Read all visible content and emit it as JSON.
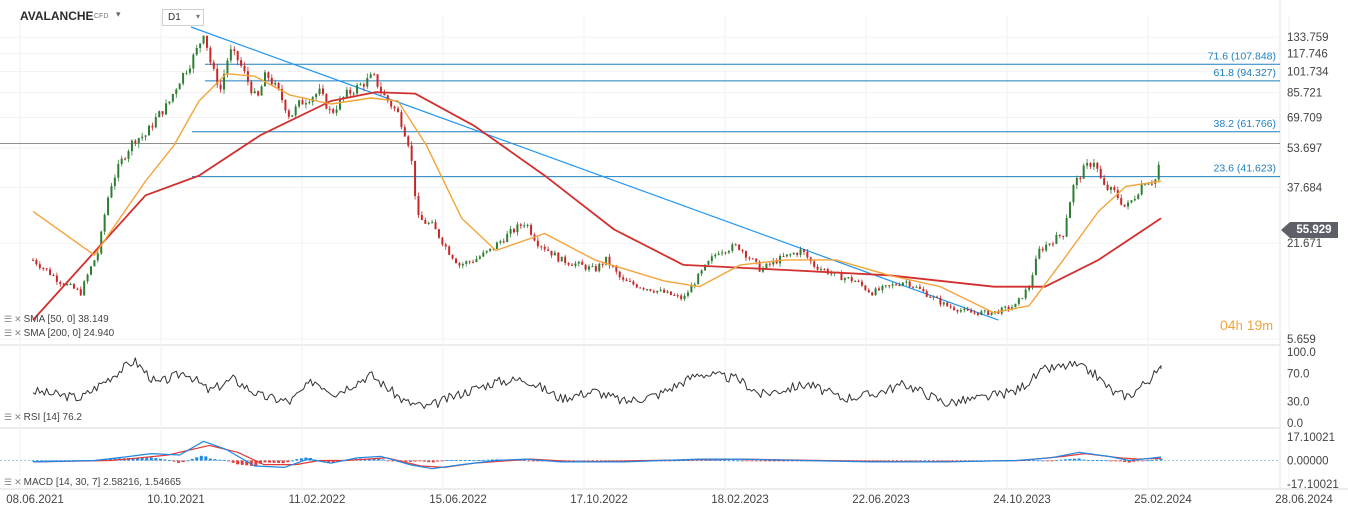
{
  "header": {
    "instrument": "AVALANCHE",
    "instrument_type": "CFD",
    "timeframe": "D1"
  },
  "countdown": {
    "hours": "04",
    "hours_unit": "h",
    "minutes": "19",
    "minutes_unit": "m"
  },
  "indicators": {
    "sma50": "SMA [50, 0] 38.149",
    "sma200": "SMA [200, 0] 24.940",
    "rsi": "RSI [14] 76.2",
    "macd": "MACD [14, 30, 7] 2.58216, 1.54665"
  },
  "colors": {
    "up_candle": "#2e7d32",
    "down_candle": "#c62828",
    "sma50": "#f3a43a",
    "sma200": "#d32f2f",
    "fib_line": "#1f7fbf",
    "trend_line": "#2196f3",
    "price_line": "#556",
    "rsi_line": "#333333",
    "macd_line": "#1e88e5",
    "signal_line": "#e53935",
    "hist_pos": "#1e88e5",
    "hist_neg": "#e53935"
  },
  "chart_data": [
    {
      "type": "candlestick",
      "title": "AVALANCHE CFD D1",
      "x_dates": [
        "08.06.2021",
        "10.10.2021",
        "11.02.2022",
        "15.06.2022",
        "17.10.2022",
        "18.02.2023",
        "22.06.2023",
        "24.10.2023",
        "25.02.2024",
        "28.06.2024"
      ],
      "y_ticks": [
        "133.759",
        "117.746",
        "101.734",
        "85.721",
        "69.709",
        "53.697",
        "37.684",
        "21.671",
        "5.659"
      ],
      "ylim": [
        5.659,
        145
      ],
      "last_price": "55.929",
      "price_points": [
        [
          "2021-06-08",
          18
        ],
        [
          "2021-07-01",
          14
        ],
        [
          "2021-07-20",
          12
        ],
        [
          "2021-08-05",
          20
        ],
        [
          "2021-08-15",
          38
        ],
        [
          "2021-08-25",
          48
        ],
        [
          "2021-09-05",
          58
        ],
        [
          "2021-09-15",
          60
        ],
        [
          "2021-09-25",
          70
        ],
        [
          "2021-10-05",
          78
        ],
        [
          "2021-10-15",
          95
        ],
        [
          "2021-10-25",
          110
        ],
        [
          "2021-11-01",
          125
        ],
        [
          "2021-11-05",
          140
        ],
        [
          "2021-11-12",
          105
        ],
        [
          "2021-11-20",
          88
        ],
        [
          "2021-11-28",
          120
        ],
        [
          "2021-12-05",
          112
        ],
        [
          "2021-12-15",
          92
        ],
        [
          "2021-12-22",
          80
        ],
        [
          "2021-12-30",
          100
        ],
        [
          "2022-01-10",
          86
        ],
        [
          "2022-01-20",
          70
        ],
        [
          "2022-01-28",
          78
        ],
        [
          "2022-02-05",
          82
        ],
        [
          "2022-02-15",
          86
        ],
        [
          "2022-02-25",
          72
        ],
        [
          "2022-03-10",
          84
        ],
        [
          "2022-03-25",
          92
        ],
        [
          "2022-04-03",
          98
        ],
        [
          "2022-04-12",
          84
        ],
        [
          "2022-04-25",
          72
        ],
        [
          "2022-05-05",
          55
        ],
        [
          "2022-05-12",
          28
        ],
        [
          "2022-05-25",
          26
        ],
        [
          "2022-06-08",
          20
        ],
        [
          "2022-06-18",
          17
        ],
        [
          "2022-07-01",
          18
        ],
        [
          "2022-07-15",
          20
        ],
        [
          "2022-08-01",
          24
        ],
        [
          "2022-08-15",
          27
        ],
        [
          "2022-08-25",
          22
        ],
        [
          "2022-09-15",
          18
        ],
        [
          "2022-10-01",
          17
        ],
        [
          "2022-10-15",
          16
        ],
        [
          "2022-10-25",
          18
        ],
        [
          "2022-11-08",
          14
        ],
        [
          "2022-11-25",
          13
        ],
        [
          "2022-12-15",
          12
        ],
        [
          "2023-01-01",
          11
        ],
        [
          "2023-01-15",
          15
        ],
        [
          "2023-02-01",
          20
        ],
        [
          "2023-02-18",
          21
        ],
        [
          "2023-03-10",
          16
        ],
        [
          "2023-03-25",
          18
        ],
        [
          "2023-04-15",
          20
        ],
        [
          "2023-04-25",
          17
        ],
        [
          "2023-05-15",
          15
        ],
        [
          "2023-06-01",
          14
        ],
        [
          "2023-06-15",
          12
        ],
        [
          "2023-07-01",
          13
        ],
        [
          "2023-07-15",
          14
        ],
        [
          "2023-08-01",
          12
        ],
        [
          "2023-08-20",
          10
        ],
        [
          "2023-09-10",
          9
        ],
        [
          "2023-10-01",
          9
        ],
        [
          "2023-10-20",
          10
        ],
        [
          "2023-11-01",
          13
        ],
        [
          "2023-11-10",
          20
        ],
        [
          "2023-11-20",
          22
        ],
        [
          "2023-12-01",
          24
        ],
        [
          "2023-12-10",
          38
        ],
        [
          "2023-12-20",
          45
        ],
        [
          "2023-12-28",
          48
        ],
        [
          "2024-01-05",
          38
        ],
        [
          "2024-01-15",
          36
        ],
        [
          "2024-01-25",
          31
        ],
        [
          "2024-02-01",
          34
        ],
        [
          "2024-02-10",
          40
        ],
        [
          "2024-02-18",
          40
        ],
        [
          "2024-02-22",
          41
        ],
        [
          "2024-02-25",
          56
        ]
      ],
      "sma50_points": [
        [
          "2021-06-08",
          30
        ],
        [
          "2021-08-01",
          19
        ],
        [
          "2021-09-15",
          40
        ],
        [
          "2021-10-10",
          55
        ],
        [
          "2021-11-01",
          80
        ],
        [
          "2021-11-25",
          100
        ],
        [
          "2021-12-20",
          98
        ],
        [
          "2022-01-20",
          84
        ],
        [
          "2022-02-25",
          78
        ],
        [
          "2022-04-01",
          82
        ],
        [
          "2022-04-25",
          80
        ],
        [
          "2022-05-20",
          55
        ],
        [
          "2022-06-20",
          28
        ],
        [
          "2022-07-20",
          20
        ],
        [
          "2022-09-01",
          24
        ],
        [
          "2022-10-15",
          18
        ],
        [
          "2022-12-15",
          14
        ],
        [
          "2023-01-15",
          13
        ],
        [
          "2023-02-20",
          17
        ],
        [
          "2023-04-01",
          18
        ],
        [
          "2023-05-15",
          18
        ],
        [
          "2023-07-01",
          15
        ],
        [
          "2023-08-15",
          13
        ],
        [
          "2023-10-01",
          9
        ],
        [
          "2023-11-01",
          10
        ],
        [
          "2023-12-01",
          18
        ],
        [
          "2024-01-01",
          30
        ],
        [
          "2024-01-25",
          38
        ],
        [
          "2024-02-25",
          40
        ]
      ],
      "sma200_points": [
        [
          "2021-06-08",
          8
        ],
        [
          "2021-09-15",
          35
        ],
        [
          "2021-11-01",
          42
        ],
        [
          "2021-12-25",
          60
        ],
        [
          "2022-02-25",
          80
        ],
        [
          "2022-04-05",
          86
        ],
        [
          "2022-05-10",
          85
        ],
        [
          "2022-07-01",
          65
        ],
        [
          "2022-09-01",
          42
        ],
        [
          "2022-11-01",
          25
        ],
        [
          "2023-01-01",
          17
        ],
        [
          "2023-04-01",
          16
        ],
        [
          "2023-07-01",
          15
        ],
        [
          "2023-10-01",
          13
        ],
        [
          "2023-11-15",
          13
        ],
        [
          "2024-01-01",
          18
        ],
        [
          "2024-02-25",
          28
        ]
      ],
      "trend_line": [
        [
          "2021-10-25",
          145
        ],
        [
          "2023-10-05",
          8
        ]
      ],
      "fibonacci_levels": [
        {
          "label": "71.6 (107.848)",
          "value": 107.848
        },
        {
          "label": "61.8 (94.327)",
          "value": 94.327
        },
        {
          "label": "38.2 (61.766)",
          "value": 61.766
        },
        {
          "label": "23.6 (41.623)",
          "value": 41.623
        }
      ]
    },
    {
      "type": "line",
      "title": "RSI [14]",
      "y_ticks": [
        "100.0",
        "70.0",
        "30.0",
        "0.0"
      ],
      "ylim": [
        0,
        100
      ],
      "last_value": 76.2,
      "points": [
        [
          "2021-06-08",
          45
        ],
        [
          "2021-07-20",
          35
        ],
        [
          "2021-08-20",
          70
        ],
        [
          "2021-09-05",
          88
        ],
        [
          "2021-09-25",
          55
        ],
        [
          "2021-10-20",
          72
        ],
        [
          "2021-11-10",
          45
        ],
        [
          "2021-12-01",
          62
        ],
        [
          "2021-12-25",
          38
        ],
        [
          "2022-01-20",
          30
        ],
        [
          "2022-02-10",
          60
        ],
        [
          "2022-03-01",
          42
        ],
        [
          "2022-04-01",
          68
        ],
        [
          "2022-05-01",
          30
        ],
        [
          "2022-05-20",
          22
        ],
        [
          "2022-06-20",
          42
        ],
        [
          "2022-07-20",
          58
        ],
        [
          "2022-08-15",
          62
        ],
        [
          "2022-09-15",
          35
        ],
        [
          "2022-10-15",
          45
        ],
        [
          "2022-11-10",
          30
        ],
        [
          "2022-12-10",
          40
        ],
        [
          "2023-01-15",
          70
        ],
        [
          "2023-02-18",
          62
        ],
        [
          "2023-03-10",
          40
        ],
        [
          "2023-04-20",
          55
        ],
        [
          "2023-05-20",
          35
        ],
        [
          "2023-06-15",
          40
        ],
        [
          "2023-07-15",
          55
        ],
        [
          "2023-08-20",
          28
        ],
        [
          "2023-09-20",
          35
        ],
        [
          "2023-10-20",
          45
        ],
        [
          "2023-11-15",
          75
        ],
        [
          "2023-12-10",
          82
        ],
        [
          "2023-12-28",
          70
        ],
        [
          "2024-01-15",
          42
        ],
        [
          "2024-01-28",
          38
        ],
        [
          "2024-02-15",
          62
        ],
        [
          "2024-02-25",
          76
        ]
      ]
    },
    {
      "type": "bar",
      "title": "MACD [14, 30, 7]",
      "y_ticks": [
        "17.10021",
        "0.00000",
        "-17.10021"
      ],
      "ylim": [
        -17.10021,
        17.10021
      ],
      "macd": 2.58216,
      "signal": 1.54665,
      "macd_points": [
        [
          "2021-06-08",
          -1
        ],
        [
          "2021-08-01",
          0
        ],
        [
          "2021-09-01",
          3
        ],
        [
          "2021-09-20",
          5
        ],
        [
          "2021-10-15",
          4
        ],
        [
          "2021-11-05",
          14
        ],
        [
          "2021-11-25",
          8
        ],
        [
          "2021-12-20",
          -4
        ],
        [
          "2022-01-15",
          -5
        ],
        [
          "2022-02-05",
          1
        ],
        [
          "2022-02-25",
          -2
        ],
        [
          "2022-03-20",
          2
        ],
        [
          "2022-04-10",
          3
        ],
        [
          "2022-05-05",
          -3
        ],
        [
          "2022-05-25",
          -6
        ],
        [
          "2022-06-20",
          -3
        ],
        [
          "2022-07-20",
          0
        ],
        [
          "2022-08-15",
          1
        ],
        [
          "2022-09-15",
          -1
        ],
        [
          "2022-11-10",
          -1
        ],
        [
          "2023-01-15",
          1
        ],
        [
          "2023-02-18",
          1
        ],
        [
          "2023-04-15",
          0
        ],
        [
          "2023-06-15",
          -1
        ],
        [
          "2023-08-20",
          -1
        ],
        [
          "2023-10-20",
          0
        ],
        [
          "2023-11-20",
          2
        ],
        [
          "2023-12-15",
          6
        ],
        [
          "2024-01-10",
          3
        ],
        [
          "2024-01-28",
          0
        ],
        [
          "2024-02-15",
          1.5
        ],
        [
          "2024-02-25",
          2.58
        ]
      ],
      "signal_points": [
        [
          "2021-06-08",
          -1
        ],
        [
          "2021-08-15",
          0
        ],
        [
          "2021-09-10",
          2
        ],
        [
          "2021-10-05",
          4
        ],
        [
          "2021-11-10",
          11
        ],
        [
          "2021-12-05",
          6
        ],
        [
          "2021-12-28",
          -3
        ],
        [
          "2022-01-25",
          -3
        ],
        [
          "2022-02-15",
          0
        ],
        [
          "2022-03-10",
          0
        ],
        [
          "2022-04-15",
          2
        ],
        [
          "2022-05-15",
          -4
        ],
        [
          "2022-06-05",
          -5
        ],
        [
          "2022-07-01",
          -2
        ],
        [
          "2022-08-20",
          1
        ],
        [
          "2022-10-01",
          -1
        ],
        [
          "2022-12-01",
          0
        ],
        [
          "2023-02-20",
          1
        ],
        [
          "2023-05-01",
          0
        ],
        [
          "2023-08-01",
          -1
        ],
        [
          "2023-10-25",
          0
        ],
        [
          "2023-12-01",
          3
        ],
        [
          "2023-12-20",
          5
        ],
        [
          "2024-01-20",
          2
        ],
        [
          "2024-02-05",
          1
        ],
        [
          "2024-02-25",
          1.55
        ]
      ]
    }
  ]
}
